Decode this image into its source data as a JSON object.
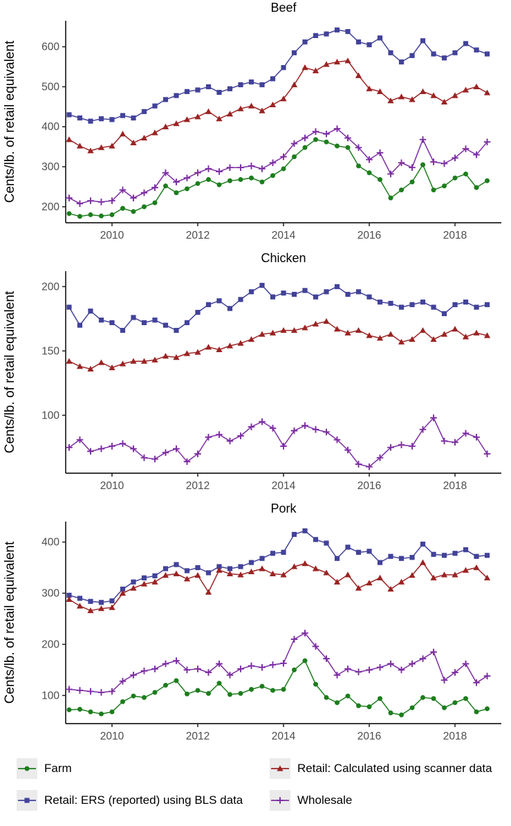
{
  "figure": {
    "y_axis_title": "Cents/lb. of retail equivalent",
    "x_range": [
      2008.92,
      2019.08
    ],
    "x_ticks": [
      2010,
      2012,
      2014,
      2016,
      2018
    ],
    "x_quarters": [
      2009.0,
      2009.25,
      2009.5,
      2009.75,
      2010.0,
      2010.25,
      2010.5,
      2010.75,
      2011.0,
      2011.25,
      2011.5,
      2011.75,
      2012.0,
      2012.25,
      2012.5,
      2012.75,
      2013.0,
      2013.25,
      2013.5,
      2013.75,
      2014.0,
      2014.25,
      2014.5,
      2014.75,
      2015.0,
      2015.25,
      2015.5,
      2015.75,
      2016.0,
      2016.25,
      2016.5,
      2016.75,
      2017.0,
      2017.25,
      2017.5,
      2017.75,
      2018.0,
      2018.25,
      2018.5,
      2018.75
    ]
  },
  "series_meta": [
    {
      "id": "farm",
      "label": "Farm",
      "color": "#1d7d1d",
      "marker": "circle"
    },
    {
      "id": "scanner",
      "label": "Retail: Calculated using scanner data",
      "color": "#9b2323",
      "marker": "triangle"
    },
    {
      "id": "ers",
      "label": "Retail: ERS (reported) using BLS data",
      "color": "#42429a",
      "marker": "square"
    },
    {
      "id": "wholesale",
      "label": "Wholesale",
      "color": "#7c2da2",
      "marker": "plus"
    }
  ],
  "chart_data": [
    {
      "type": "line",
      "title": "Beef",
      "ylabel": "Cents/lb. of retail equivalent",
      "ylim": [
        160,
        665
      ],
      "y_ticks": [
        200,
        300,
        400,
        500,
        600
      ],
      "grid": false,
      "series": [
        {
          "id": "ers",
          "name": "Retail: ERS (reported) using BLS data",
          "values": [
            430,
            422,
            414,
            420,
            418,
            428,
            422,
            438,
            452,
            468,
            478,
            488,
            492,
            500,
            486,
            495,
            505,
            512,
            505,
            520,
            548,
            585,
            612,
            628,
            632,
            642,
            638,
            612,
            605,
            622,
            585,
            562,
            578,
            615,
            582,
            572,
            585,
            608,
            592,
            582
          ]
        },
        {
          "id": "scanner",
          "name": "Retail: Calculated using scanner data",
          "values": [
            368,
            352,
            340,
            348,
            352,
            382,
            360,
            372,
            385,
            400,
            408,
            418,
            425,
            438,
            420,
            432,
            445,
            452,
            440,
            455,
            470,
            505,
            548,
            540,
            556,
            562,
            565,
            528,
            495,
            488,
            465,
            475,
            468,
            488,
            478,
            462,
            478,
            492,
            500,
            485
          ]
        },
        {
          "id": "farm",
          "name": "Farm",
          "values": [
            183,
            176,
            180,
            177,
            180,
            196,
            188,
            200,
            210,
            252,
            235,
            245,
            258,
            268,
            255,
            265,
            268,
            272,
            262,
            278,
            295,
            325,
            348,
            368,
            362,
            352,
            348,
            302,
            285,
            268,
            222,
            242,
            262,
            305,
            242,
            252,
            272,
            282,
            248,
            265
          ]
        },
        {
          "id": "wholesale",
          "name": "Wholesale",
          "values": [
            222,
            208,
            215,
            212,
            215,
            242,
            222,
            235,
            248,
            285,
            262,
            272,
            285,
            295,
            288,
            298,
            298,
            302,
            295,
            310,
            325,
            358,
            372,
            388,
            382,
            395,
            372,
            348,
            318,
            335,
            282,
            310,
            298,
            368,
            312,
            308,
            322,
            345,
            330,
            362
          ]
        }
      ]
    },
    {
      "type": "line",
      "title": "Chicken",
      "ylabel": "Cents/lb. of retail equivalent",
      "ylim": [
        55,
        212
      ],
      "y_ticks": [
        100,
        150,
        200
      ],
      "grid": false,
      "series": [
        {
          "id": "ers",
          "name": "Retail: ERS (reported) using BLS data",
          "values": [
            184,
            170,
            181,
            174,
            172,
            166,
            176,
            172,
            174,
            170,
            166,
            172,
            180,
            186,
            189,
            183,
            190,
            196,
            201,
            192,
            195,
            194,
            197,
            192,
            196,
            200,
            194,
            196,
            192,
            188,
            187,
            184,
            186,
            188,
            184,
            179,
            186,
            188,
            184,
            186
          ]
        },
        {
          "id": "scanner",
          "name": "Retail: Calculated using scanner data",
          "values": [
            142,
            138,
            136,
            141,
            137,
            140,
            142,
            142,
            143,
            146,
            145,
            148,
            149,
            153,
            151,
            154,
            156,
            159,
            163,
            164,
            166,
            166,
            168,
            171,
            173,
            167,
            164,
            166,
            162,
            160,
            163,
            157,
            159,
            166,
            159,
            163,
            167,
            161,
            164,
            162
          ]
        },
        {
          "id": "wholesale",
          "name": "Wholesale",
          "values": [
            75,
            81,
            72,
            74,
            76,
            78,
            74,
            67,
            66,
            71,
            74,
            64,
            70,
            83,
            85,
            80,
            84,
            91,
            95,
            90,
            76,
            88,
            92,
            89,
            87,
            81,
            73,
            62,
            60,
            67,
            75,
            77,
            76,
            89,
            98,
            80,
            79,
            86,
            83,
            70
          ]
        }
      ]
    },
    {
      "type": "line",
      "title": "Pork",
      "ylabel": "Cents/lb. of retail equivalent",
      "ylim": [
        45,
        440
      ],
      "y_ticks": [
        100,
        200,
        300,
        400
      ],
      "grid": false,
      "series": [
        {
          "id": "ers",
          "name": "Retail: ERS (reported) using BLS data",
          "values": [
            296,
            290,
            284,
            282,
            285,
            308,
            322,
            330,
            334,
            348,
            356,
            344,
            350,
            340,
            352,
            348,
            352,
            360,
            368,
            378,
            380,
            415,
            422,
            405,
            398,
            368,
            390,
            380,
            382,
            360,
            372,
            368,
            370,
            396,
            376,
            374,
            378,
            385,
            372,
            374
          ]
        },
        {
          "id": "scanner",
          "name": "Retail: Calculated using scanner data",
          "values": [
            288,
            275,
            266,
            270,
            272,
            300,
            310,
            318,
            322,
            335,
            338,
            328,
            335,
            302,
            345,
            338,
            336,
            342,
            348,
            338,
            336,
            352,
            358,
            348,
            340,
            322,
            336,
            310,
            320,
            330,
            308,
            322,
            335,
            360,
            330,
            336,
            336,
            345,
            350,
            330
          ]
        },
        {
          "id": "farm",
          "name": "Farm",
          "values": [
            72,
            73,
            68,
            64,
            68,
            88,
            99,
            96,
            106,
            120,
            129,
            103,
            110,
            104,
            124,
            102,
            104,
            112,
            118,
            110,
            112,
            150,
            168,
            122,
            96,
            86,
            99,
            80,
            78,
            94,
            66,
            62,
            76,
            96,
            94,
            76,
            86,
            94,
            68,
            74
          ]
        },
        {
          "id": "wholesale",
          "name": "Wholesale",
          "values": [
            112,
            110,
            108,
            106,
            108,
            128,
            140,
            148,
            152,
            162,
            168,
            150,
            152,
            145,
            162,
            140,
            152,
            158,
            155,
            160,
            163,
            210,
            222,
            196,
            172,
            140,
            152,
            146,
            150,
            155,
            162,
            150,
            162,
            172,
            185,
            130,
            145,
            162,
            125,
            138
          ]
        }
      ]
    }
  ],
  "legend_order": [
    "farm",
    "scanner",
    "ers",
    "wholesale"
  ],
  "style": {
    "axis_line_color": "#1f1f1f",
    "tick_label_color": "#4d4d4d",
    "title_color": "#000000",
    "legend_key_bg": "#ebebeb",
    "background": "#ffffff"
  }
}
